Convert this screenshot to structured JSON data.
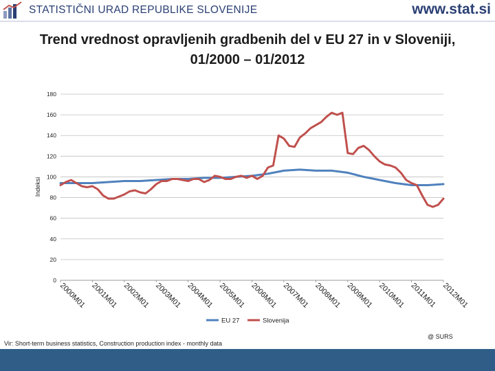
{
  "header": {
    "org_name": "STATISTIČNI URAD REPUBLIKE SLOVENIJE",
    "site_url": "www.stat.si",
    "logo_icon": "surs-logo-icon",
    "brand_color": "#2a3f74"
  },
  "title": "Trend vrednost opravljenih gradbenih del v EU 27 in v Sloveniji, 01/2000 – 01/2012",
  "footer": {
    "source": "Vir: Short-term business statistics, Construction production index - monthly data",
    "copyright": "@ SURS",
    "band_color": "#2f5d88"
  },
  "chart_data": {
    "type": "line",
    "title": "Trend vrednost opravljenih gradbenih del v EU 27 in v Sloveniji, 01/2000 – 01/2012",
    "xlabel": "",
    "ylabel": "Indeksi",
    "ylim": [
      0,
      180
    ],
    "yticks": [
      0,
      20,
      40,
      60,
      80,
      100,
      120,
      140,
      160,
      180
    ],
    "grid": true,
    "legend": "bottom",
    "x_tick_labels": [
      "2000M01",
      "2001M01",
      "2002M01",
      "2003M01",
      "2004M01",
      "2005M01",
      "2006M01",
      "2007M01",
      "2008M01",
      "2009M01",
      "2010M01",
      "2011M01",
      "2012M01"
    ],
    "x_unit": "months since 2000M01",
    "series": [
      {
        "name": "EU 27",
        "color": "#4f81bd",
        "points": [
          [
            0,
            94
          ],
          [
            6,
            94
          ],
          [
            12,
            94
          ],
          [
            18,
            95
          ],
          [
            24,
            96
          ],
          [
            30,
            96
          ],
          [
            36,
            97
          ],
          [
            42,
            98
          ],
          [
            48,
            98
          ],
          [
            54,
            99
          ],
          [
            60,
            99
          ],
          [
            66,
            100
          ],
          [
            72,
            101
          ],
          [
            78,
            103
          ],
          [
            84,
            106
          ],
          [
            90,
            107
          ],
          [
            96,
            106
          ],
          [
            102,
            106
          ],
          [
            108,
            104
          ],
          [
            114,
            100
          ],
          [
            120,
            97
          ],
          [
            126,
            94
          ],
          [
            132,
            92
          ],
          [
            138,
            92
          ],
          [
            144,
            93
          ]
        ]
      },
      {
        "name": "Slovenija",
        "color": "#c0504d",
        "points": [
          [
            0,
            92
          ],
          [
            2,
            95
          ],
          [
            4,
            97
          ],
          [
            6,
            94
          ],
          [
            8,
            91
          ],
          [
            10,
            90
          ],
          [
            12,
            91
          ],
          [
            14,
            88
          ],
          [
            16,
            82
          ],
          [
            18,
            79
          ],
          [
            20,
            79
          ],
          [
            22,
            81
          ],
          [
            24,
            83
          ],
          [
            26,
            86
          ],
          [
            28,
            87
          ],
          [
            30,
            85
          ],
          [
            32,
            84
          ],
          [
            34,
            88
          ],
          [
            36,
            93
          ],
          [
            38,
            96
          ],
          [
            40,
            96
          ],
          [
            42,
            98
          ],
          [
            44,
            98
          ],
          [
            46,
            97
          ],
          [
            48,
            96
          ],
          [
            50,
            98
          ],
          [
            52,
            98
          ],
          [
            54,
            95
          ],
          [
            56,
            97
          ],
          [
            58,
            101
          ],
          [
            60,
            100
          ],
          [
            62,
            98
          ],
          [
            64,
            98
          ],
          [
            66,
            100
          ],
          [
            68,
            101
          ],
          [
            70,
            99
          ],
          [
            72,
            101
          ],
          [
            74,
            98
          ],
          [
            76,
            101
          ],
          [
            78,
            109
          ],
          [
            80,
            111
          ],
          [
            82,
            140
          ],
          [
            84,
            137
          ],
          [
            86,
            130
          ],
          [
            88,
            129
          ],
          [
            90,
            138
          ],
          [
            92,
            142
          ],
          [
            94,
            147
          ],
          [
            96,
            150
          ],
          [
            98,
            153
          ],
          [
            100,
            158
          ],
          [
            102,
            162
          ],
          [
            104,
            160
          ],
          [
            106,
            162
          ],
          [
            108,
            123
          ],
          [
            110,
            122
          ],
          [
            112,
            128
          ],
          [
            114,
            130
          ],
          [
            116,
            126
          ],
          [
            118,
            120
          ],
          [
            120,
            115
          ],
          [
            122,
            112
          ],
          [
            124,
            111
          ],
          [
            126,
            109
          ],
          [
            128,
            104
          ],
          [
            130,
            97
          ],
          [
            132,
            94
          ],
          [
            134,
            92
          ],
          [
            136,
            82
          ],
          [
            138,
            73
          ],
          [
            140,
            71
          ],
          [
            142,
            73
          ],
          [
            144,
            79
          ]
        ]
      }
    ]
  }
}
